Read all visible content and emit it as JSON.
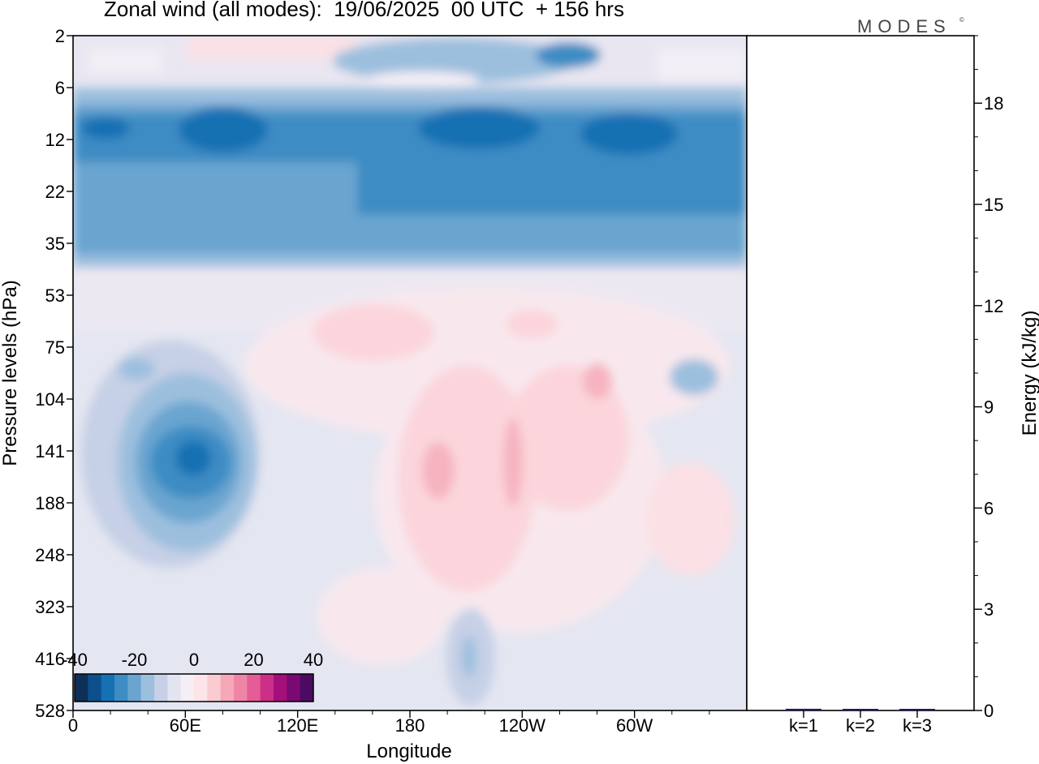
{
  "title": "Zonal wind (all modes):  19/06/2025  00 UTC  + 156 hrs",
  "logo": "MODES",
  "logo_mark": "©",
  "colors": {
    "scale": [
      "#0e2f57",
      "#0d4f8c",
      "#1671b3",
      "#3d8cc4",
      "#6aa5d0",
      "#9cbfde",
      "#c6d0e6",
      "#e2e4f0",
      "#f5eef5",
      "#fde4e8",
      "#fbcbd2",
      "#f6a8b8",
      "#ef85a5",
      "#e55c96",
      "#cc2f87",
      "#a40f7c",
      "#7a0a72",
      "#4b0b63"
    ]
  },
  "chart_data": [
    {
      "type": "heatmap",
      "title": "Zonal wind (all modes):  19/06/2025  00 UTC  + 156 hrs",
      "xlabel": "Longitude",
      "ylabel": "Pressure levels (hPa)",
      "x_ticks": [
        "0",
        "60E",
        "120E",
        "180",
        "120W",
        "60W"
      ],
      "x_tick_values": [
        0,
        60,
        120,
        180,
        240,
        300
      ],
      "xlim": [
        0,
        360
      ],
      "y_ticks": [
        "2",
        "6",
        "12",
        "22",
        "35",
        "53",
        "75",
        "104",
        "141",
        "188",
        "248",
        "323",
        "416",
        "528"
      ],
      "colorbar": {
        "ticks": [
          "-40",
          "-20",
          "0",
          "20",
          "40"
        ],
        "range": [
          -40,
          40
        ],
        "units": ""
      },
      "features": [
        {
          "name": "stratospheric easterly band",
          "lon_range": [
            0,
            360
          ],
          "levels_hPa": [
            8,
            35
          ],
          "value": -28
        },
        {
          "name": "easterly core",
          "lon": 70,
          "level_hPa": 12,
          "value": -36
        },
        {
          "name": "easterly core",
          "lon": 200,
          "level_hPa": 12,
          "value": -34
        },
        {
          "name": "easterly core",
          "lon": 290,
          "level_hPa": 12,
          "value": -34
        },
        {
          "name": "upper tropospheric easterly jet",
          "lon": 65,
          "level_hPa": 141,
          "value": -30
        },
        {
          "name": "westerly maximum",
          "lon": 195,
          "level_hPa": 141,
          "value": 12
        },
        {
          "name": "westerly maximum",
          "lon": 235,
          "level_hPa": 141,
          "value": 10
        },
        {
          "name": "westerly maximum",
          "lon": 280,
          "level_hPa": 104,
          "value": 12
        }
      ]
    },
    {
      "type": "bar",
      "ylabel": "Energy (kJ/kg)",
      "categories": [
        "k=1",
        "k=2",
        "k=3"
      ],
      "values": [
        0.05,
        0.02,
        0.02
      ],
      "ylim": [
        0,
        20
      ],
      "y_ticks": [
        "0",
        "3",
        "6",
        "9",
        "12",
        "15",
        "18"
      ],
      "y_tick_values": [
        0,
        3,
        6,
        9,
        12,
        15,
        18
      ]
    }
  ]
}
